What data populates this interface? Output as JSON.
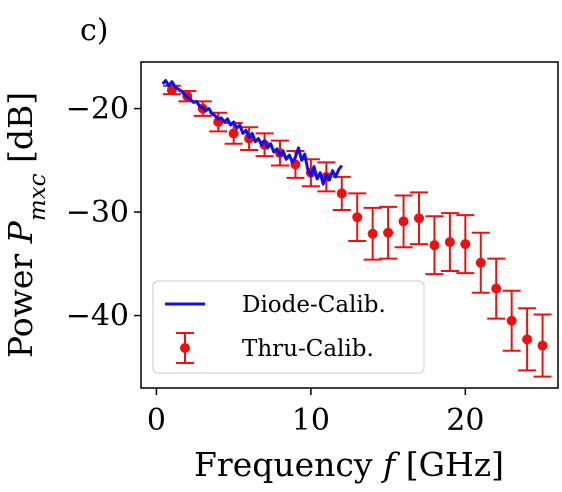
{
  "panel_label": "c)",
  "colors": {
    "diode": "#1010ee",
    "thru": "#ee1010",
    "axes": "#000000"
  },
  "chart_data": {
    "type": "line",
    "title": "",
    "xlabel": {
      "prefix": "Frequency ",
      "var": "f",
      "suffix": " [GHz]"
    },
    "ylabel": {
      "prefix": "Power ",
      "var": "P",
      "sub": "mxc",
      "suffix": " [dB]"
    },
    "xlim": [
      -1,
      26
    ],
    "ylim": [
      -47,
      -15.5
    ],
    "xticks": [
      0,
      10,
      20
    ],
    "yticks": [
      -20,
      -30,
      -40
    ],
    "grid": false,
    "legend": {
      "placement": "lower-left"
    },
    "series": [
      {
        "name": "Diode-Calib.",
        "type": "line",
        "color": "#1010ee",
        "x": [
          0.4,
          0.6,
          0.8,
          1.0,
          1.2,
          1.4,
          1.6,
          1.8,
          2.0,
          2.2,
          2.4,
          2.6,
          2.8,
          3.0,
          3.2,
          3.4,
          3.6,
          3.8,
          4.0,
          4.2,
          4.4,
          4.6,
          4.8,
          5.0,
          5.2,
          5.4,
          5.6,
          5.8,
          6.0,
          6.2,
          6.4,
          6.6,
          6.8,
          7.0,
          7.2,
          7.4,
          7.6,
          7.8,
          8.0,
          8.2,
          8.4,
          8.6,
          8.8,
          9.0,
          9.2,
          9.4,
          9.6,
          9.8,
          10.0,
          10.2,
          10.4,
          10.6,
          10.8,
          11.0,
          11.2,
          11.4,
          11.6,
          11.8,
          12.0
        ],
        "y": [
          -17.6,
          -17.3,
          -17.8,
          -17.4,
          -17.9,
          -18.1,
          -18.3,
          -18.6,
          -18.9,
          -19.1,
          -19.4,
          -19.3,
          -19.8,
          -19.9,
          -20.2,
          -20.0,
          -20.5,
          -20.7,
          -21.0,
          -20.9,
          -21.3,
          -21.0,
          -21.6,
          -21.3,
          -21.9,
          -21.6,
          -22.4,
          -22.1,
          -22.8,
          -22.4,
          -23.2,
          -22.9,
          -23.5,
          -23.1,
          -23.8,
          -23.4,
          -24.2,
          -23.9,
          -24.5,
          -24.1,
          -24.9,
          -24.5,
          -25.2,
          -24.7,
          -23.8,
          -25.0,
          -24.4,
          -25.9,
          -26.5,
          -25.6,
          -26.8,
          -26.2,
          -27.3,
          -26.4,
          -26.9,
          -26.0,
          -26.6,
          -25.9,
          -25.5
        ]
      },
      {
        "name": "Thru-Calib.",
        "type": "errorbar",
        "color": "#ee1010",
        "x": [
          1,
          2,
          3,
          4,
          5,
          6,
          7,
          8,
          9,
          10,
          11,
          12,
          13,
          14,
          15,
          16,
          17,
          18,
          19,
          20,
          21,
          22,
          23,
          24,
          25
        ],
        "y": [
          -18.2,
          -18.8,
          -20.0,
          -21.3,
          -22.4,
          -22.9,
          -23.5,
          -24.3,
          -25.4,
          -26.2,
          -26.6,
          -28.2,
          -30.5,
          -32.1,
          -32.0,
          -30.9,
          -30.6,
          -33.2,
          -32.9,
          -33.1,
          -34.9,
          -37.4,
          -40.5,
          -42.3,
          -42.9
        ],
        "err": [
          0.4,
          0.5,
          0.7,
          0.9,
          1.0,
          1.1,
          1.1,
          1.2,
          1.3,
          1.3,
          1.4,
          1.6,
          2.3,
          2.5,
          2.5,
          2.5,
          2.5,
          2.8,
          2.8,
          2.8,
          2.9,
          2.9,
          2.9,
          3.0,
          3.0
        ]
      }
    ]
  }
}
